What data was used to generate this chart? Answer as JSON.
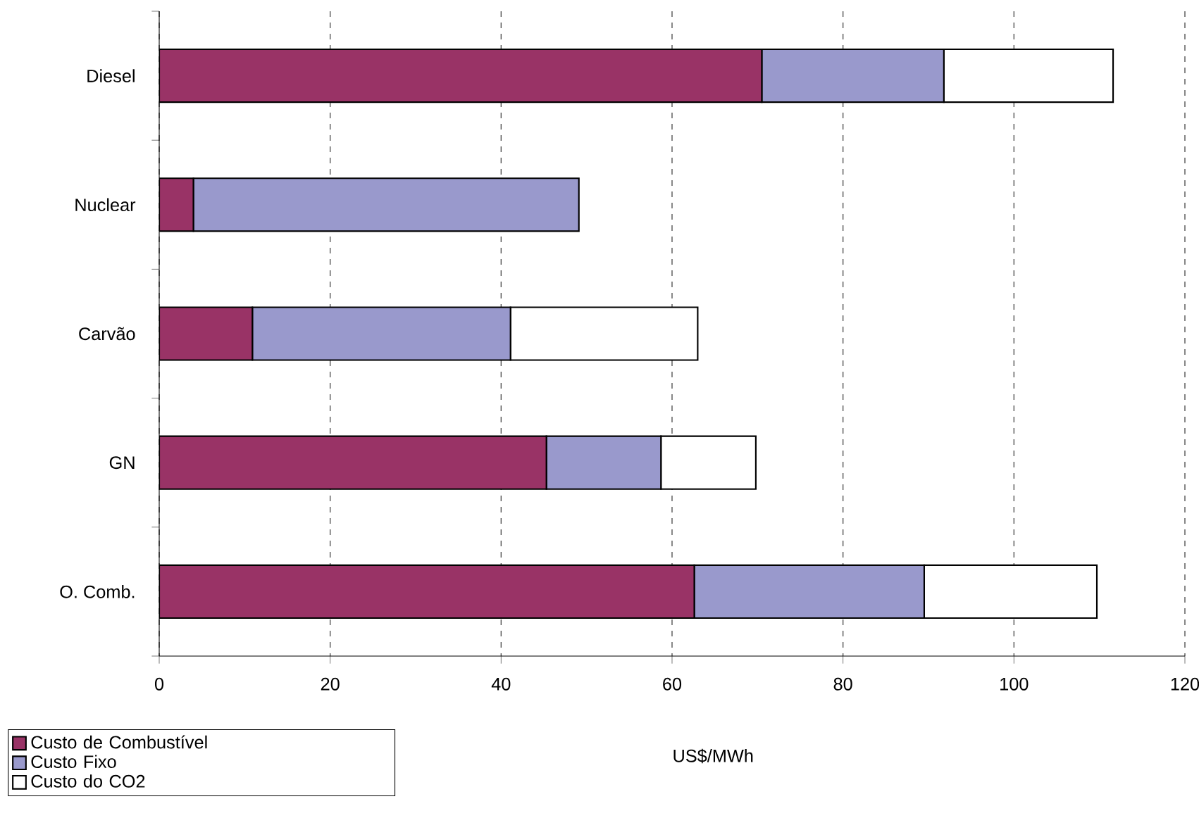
{
  "chart_data": {
    "type": "bar",
    "orientation": "horizontal",
    "stacked": true,
    "categories": [
      "Diesel",
      "Nuclear",
      "Carvão",
      "GN",
      "O. Comb."
    ],
    "xlabel": "US$/MWh",
    "xlim": [
      0,
      120
    ],
    "xticks": [
      0,
      20,
      40,
      60,
      80,
      100,
      120
    ],
    "grid": "x",
    "legend": "bottom left",
    "series": [
      {
        "name": "Custo de Combustível",
        "color": "#993366",
        "values": [
          70.5,
          4,
          10.9,
          45.3,
          62.6
        ]
      },
      {
        "name": "Custo Fixo",
        "color": "#9999cc",
        "values": [
          21.3,
          45.1,
          30.2,
          13.4,
          26.9
        ]
      },
      {
        "name": "Custo do CO2",
        "color": "#ffffff",
        "values": [
          19.8,
          null,
          21.9,
          11.1,
          20.2
        ]
      }
    ]
  }
}
